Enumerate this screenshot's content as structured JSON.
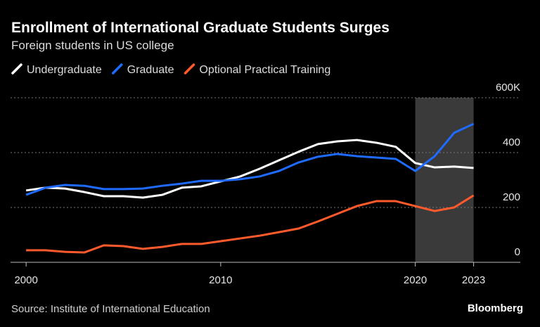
{
  "chart_data": {
    "type": "line",
    "title": "Enrollment of International Graduate Students Surges",
    "subtitle": "Foreign students in US college",
    "source": "Source: Institute of International Education",
    "brand": "Bloomberg",
    "x": [
      2000,
      2001,
      2002,
      2003,
      2004,
      2005,
      2006,
      2007,
      2008,
      2009,
      2010,
      2011,
      2012,
      2013,
      2014,
      2015,
      2016,
      2017,
      2018,
      2019,
      2020,
      2021,
      2022,
      2023
    ],
    "series": [
      {
        "name": "Undergraduate",
        "color": "#ffffff",
        "values": [
          262,
          272,
          269,
          256,
          241,
          241,
          236,
          246,
          272,
          277,
          295,
          313,
          341,
          372,
          403,
          431,
          441,
          446,
          436,
          421,
          362,
          346,
          349,
          344
        ]
      },
      {
        "name": "Graduate",
        "color": "#1f6bff",
        "values": [
          246,
          272,
          282,
          279,
          267,
          267,
          269,
          279,
          287,
          297,
          297,
          303,
          313,
          333,
          364,
          385,
          395,
          387,
          382,
          377,
          333,
          387,
          472,
          505
        ]
      },
      {
        "name": "Optional Practical Training",
        "color": "#ff5a2b",
        "values": [
          44,
          44,
          38,
          36,
          62,
          59,
          49,
          56,
          67,
          67,
          77,
          87,
          97,
          110,
          123,
          149,
          177,
          205,
          223,
          223,
          205,
          187,
          200,
          244
        ]
      }
    ],
    "xlim": [
      1999.2,
      2025.4
    ],
    "xticks": [
      2000,
      2010,
      2020,
      2023
    ],
    "ylim": [
      0,
      600
    ],
    "yticks": [
      0,
      200,
      400,
      {
        "value": 600,
        "label": "600K"
      }
    ],
    "shade": [
      2020,
      2023
    ],
    "grid": true
  }
}
